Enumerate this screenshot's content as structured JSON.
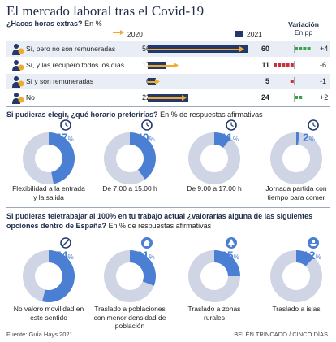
{
  "title": "El mercado laboral tras el Covid-19",
  "section1": {
    "question": "¿Haces horas extras?",
    "unit": "En %",
    "legend_2020": "2020",
    "legend_2021": "2021",
    "variation_header": "Variación",
    "variation_unit": "En pp"
  },
  "section2": {
    "question": "Si pudieras elegir, ¿qué horario preferirías?",
    "unit": "En % de respuestas afirmativas"
  },
  "section3": {
    "question_line1": "Si pudieras teletrabajar al 100% en tu trabajo actual ¿valorarías alguna de las siguientes",
    "question_line2_bold": "opciones dentro de España?",
    "unit": "En % de respuestas afirmativas"
  },
  "footer": {
    "source": "Fuente: Guía Hays 2021",
    "credit": "BELÉN TRINCADO / CINCO DÍAS"
  },
  "colors": {
    "navy": "#23386b",
    "orange": "#f3a92a",
    "blue": "#4a7fd4",
    "donut_bg": "#cfd5e4",
    "green": "#3aa34a",
    "red": "#c8323c"
  },
  "chart_data": [
    {
      "type": "bar",
      "title": "¿Haces horas extras?",
      "categories": [
        "Sí, pero no son remuneradas",
        "Sí, y las recupero todos los días",
        "Sí y son remuneradas",
        "No"
      ],
      "series": [
        {
          "name": "2020",
          "values": [
            56,
            17,
            6,
            22
          ]
        },
        {
          "name": "2021",
          "values": [
            60,
            11,
            5,
            24
          ]
        }
      ],
      "variation_labels": [
        "+4",
        "-6",
        "-1",
        "+2"
      ],
      "variation": [
        4,
        -6,
        -1,
        2
      ]
    },
    {
      "type": "pie",
      "title": "Si pudieras elegir, ¿qué horario preferirías?",
      "items": [
        {
          "label": "Flexibilidad a la entrada y la salida",
          "value": 47,
          "icon": "clock-arrows-icon"
        },
        {
          "label": "De 7.00 a 15.00 h",
          "value": 40,
          "icon": "clock-icon"
        },
        {
          "label": "De 9.00 a 17.00 h",
          "value": 11,
          "icon": "clock-icon"
        },
        {
          "label": "Jornada partida con tiempo para comer",
          "value": 2,
          "icon": "clock-split-icon"
        }
      ]
    },
    {
      "type": "pie",
      "title": "Si pudieras teletrabajar al 100% en tu trabajo actual ¿valorarías alguna de las siguientes opciones dentro de España?",
      "items": [
        {
          "label": "No valoro movilidad en este sentido",
          "value": 54,
          "icon": "no-icon"
        },
        {
          "label": "Traslado a poblaciones con menor densidad de población",
          "value": 31,
          "icon": "house-icon"
        },
        {
          "label": "Traslado a zonas rurales",
          "value": 25,
          "icon": "tree-icon"
        },
        {
          "label": "Traslado a islas",
          "value": 12,
          "icon": "boat-icon"
        }
      ]
    }
  ]
}
